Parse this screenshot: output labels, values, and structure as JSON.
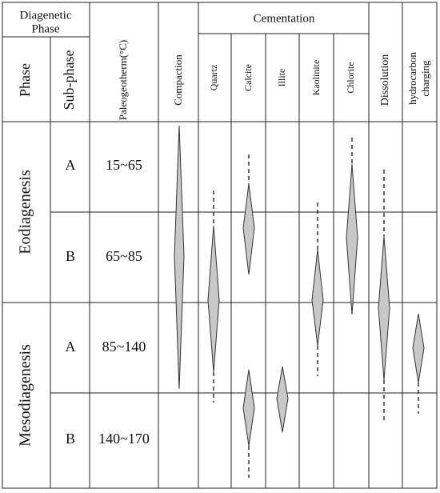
{
  "header": {
    "diagenetic_phase": [
      "Diagenetic",
      "Phase"
    ],
    "phase": "Phase",
    "sub_phase": "Sub-phase",
    "temperature": "Paleogeotherm(°C)",
    "compaction": "Compaction",
    "cementation": "Cementation",
    "cements": [
      "Quartz",
      "Calcite",
      "Illite",
      "Kaolinite",
      "Chlorite"
    ],
    "dissolution": "Dissolution",
    "hydrocarbon": [
      "hydrocarbon",
      "charging"
    ]
  },
  "phases": [
    {
      "name": "Eodiagenesis",
      "subphases": [
        {
          "name": "A",
          "temperature": "15~65"
        },
        {
          "name": "B",
          "temperature": "65~85"
        }
      ]
    },
    {
      "name": "Mesodiagenesis",
      "subphases": [
        {
          "name": "A",
          "temperature": "85~140"
        },
        {
          "name": "B",
          "temperature": "140~170"
        }
      ]
    }
  ]
}
